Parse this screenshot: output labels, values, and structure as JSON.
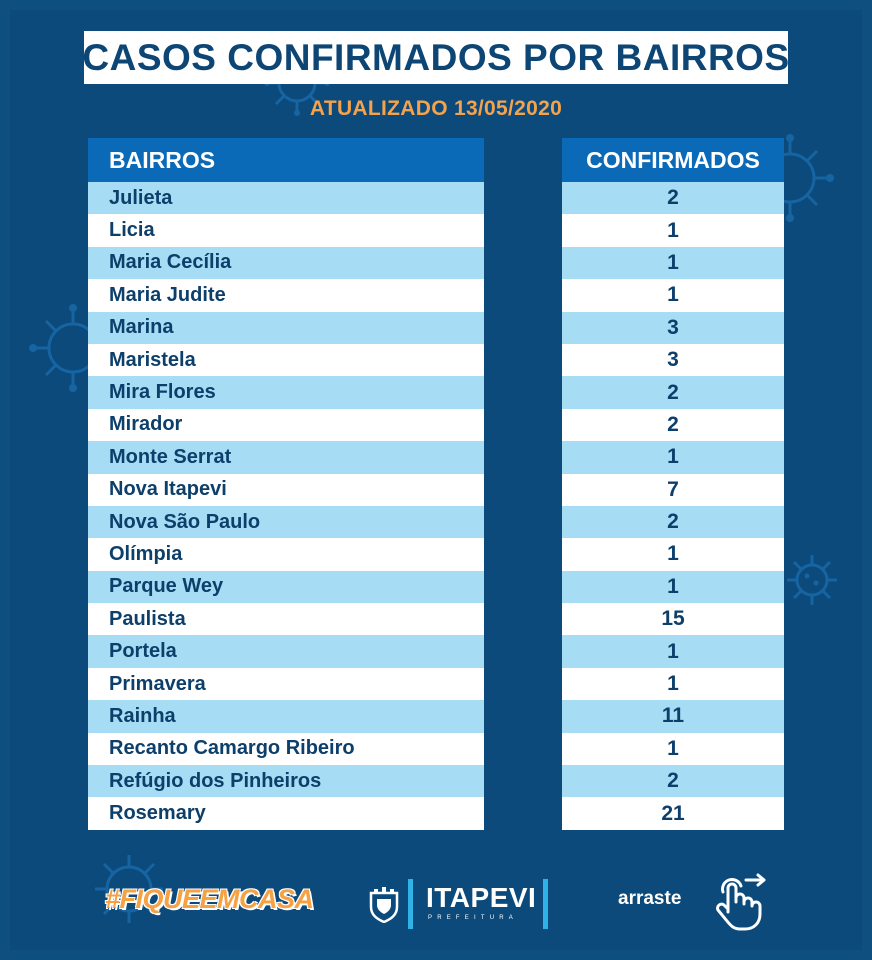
{
  "header": {
    "title": "CASOS CONFIRMADOS POR BAIRROS",
    "updated": "ATUALIZADO 13/05/2020"
  },
  "table": {
    "columns": [
      "BAIRROS",
      "CONFIRMADOS"
    ],
    "rows": [
      {
        "bairro": "Julieta",
        "confirmados": "2"
      },
      {
        "bairro": "Licia",
        "confirmados": "1"
      },
      {
        "bairro": "Maria Cecília",
        "confirmados": "1"
      },
      {
        "bairro": "Maria Judite",
        "confirmados": "1"
      },
      {
        "bairro": "Marina",
        "confirmados": "3"
      },
      {
        "bairro": "Maristela",
        "confirmados": "3"
      },
      {
        "bairro": "Mira Flores",
        "confirmados": "2"
      },
      {
        "bairro": "Mirador",
        "confirmados": "2"
      },
      {
        "bairro": "Monte Serrat",
        "confirmados": "1"
      },
      {
        "bairro": "Nova Itapevi",
        "confirmados": "7"
      },
      {
        "bairro": "Nova São Paulo",
        "confirmados": "2"
      },
      {
        "bairro": "Olímpia",
        "confirmados": "1"
      },
      {
        "bairro": "Parque Wey",
        "confirmados": "1"
      },
      {
        "bairro": "Paulista",
        "confirmados": "15"
      },
      {
        "bairro": "Portela",
        "confirmados": "1"
      },
      {
        "bairro": "Primavera",
        "confirmados": "1"
      },
      {
        "bairro": "Rainha",
        "confirmados": "11"
      },
      {
        "bairro": "Recanto Camargo Ribeiro",
        "confirmados": "1"
      },
      {
        "bairro": "Refúgio dos Pinheiros",
        "confirmados": "2"
      },
      {
        "bairro": "Rosemary",
        "confirmados": "21"
      }
    ]
  },
  "footer": {
    "hashtag": "#FIQUEEMCASA",
    "logo_name": "ITAPEVI",
    "logo_sub": "PREFEITURA",
    "swipe_label": "arraste",
    "swipe_icon": "hand-swipe-icon"
  },
  "colors": {
    "background": "#0b4a7b",
    "header_cell": "#0b6ab8",
    "row_stripe": "#a6dcf4",
    "accent_orange": "#f4a24b",
    "text_dark": "#0d3f6b"
  }
}
